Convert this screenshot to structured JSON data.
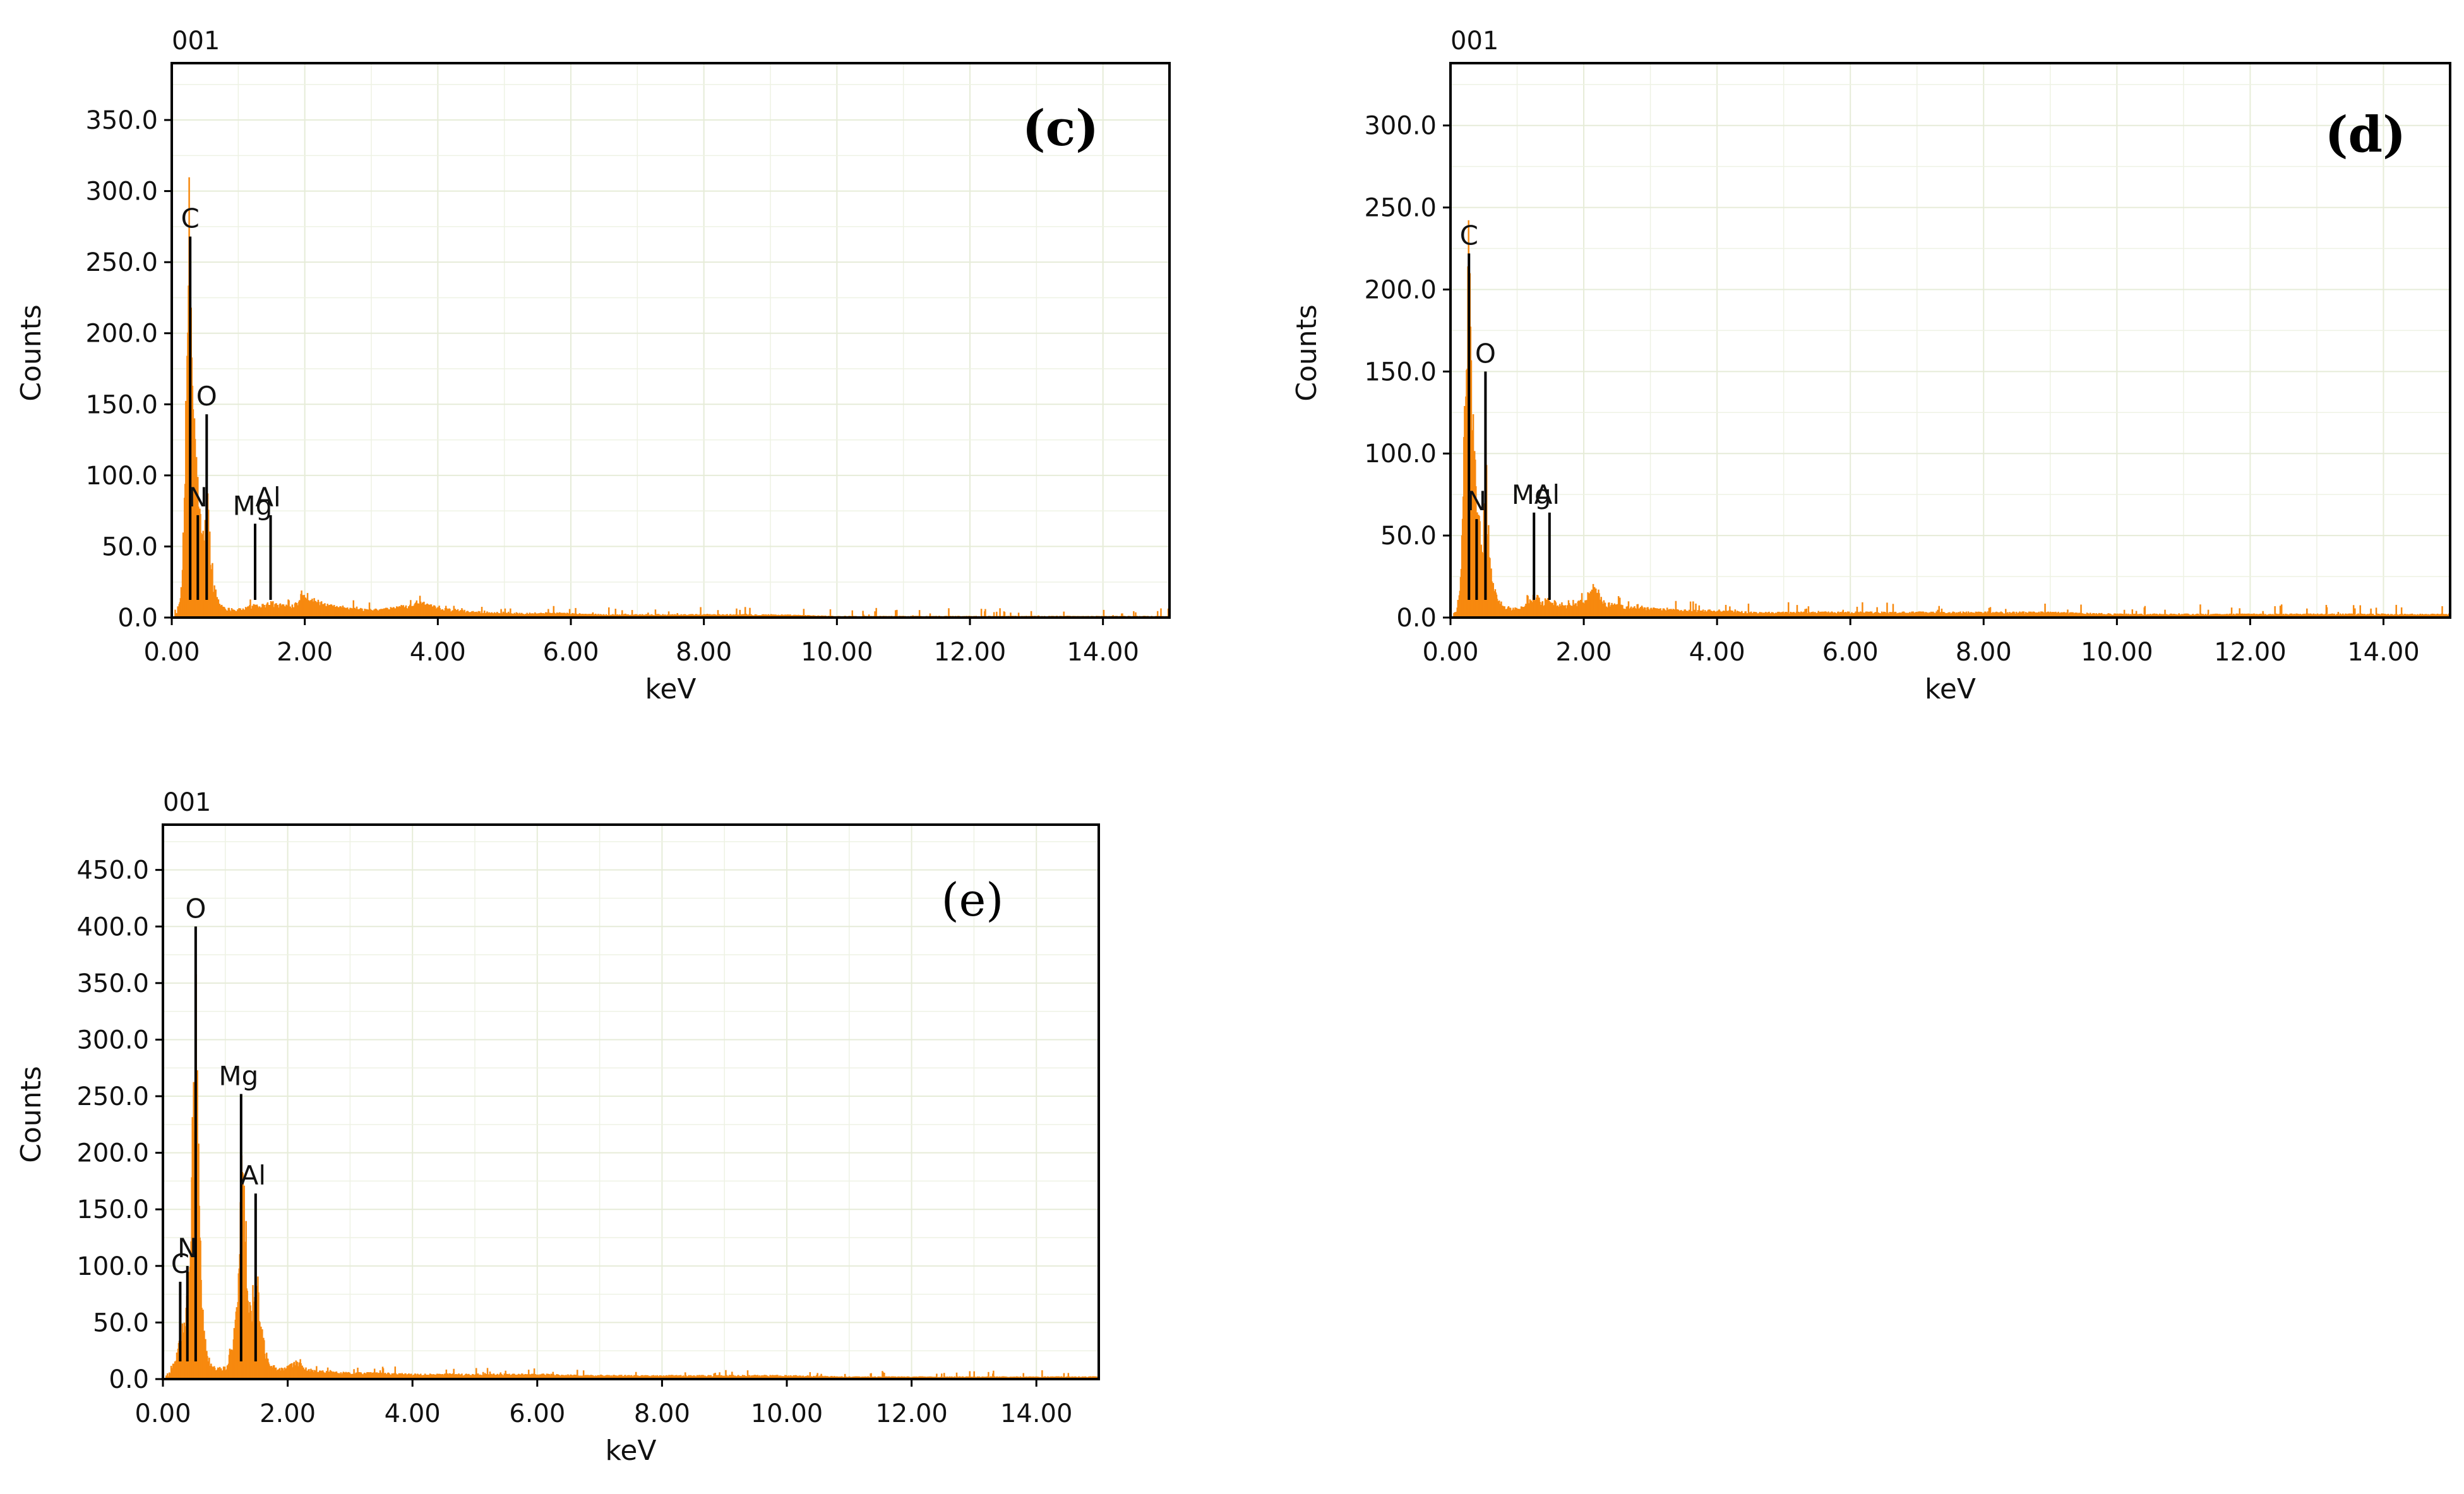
{
  "chart_data": [
    {
      "id": "c",
      "type": "bar",
      "spectrum_id": "001",
      "panel_label": "(c)",
      "panel_label_style": "bold",
      "xlabel": "keV",
      "ylabel": "Counts",
      "xlim": [
        0,
        15
      ],
      "ylim": [
        0,
        390
      ],
      "xticks": [
        "0.00",
        "2.00",
        "4.00",
        "6.00",
        "8.00",
        "10.00",
        "12.00",
        "14.00"
      ],
      "yticks": [
        "0.0",
        "50.0",
        "100.0",
        "150.0",
        "200.0",
        "250.0",
        "300.0",
        "350.0"
      ],
      "grid": true,
      "color": "#F7890F",
      "spectrum": {
        "x": [
          0.08,
          0.14,
          0.18,
          0.22,
          0.25,
          0.28,
          0.31,
          0.34,
          0.37,
          0.4,
          0.44,
          0.48,
          0.52,
          0.55,
          0.58,
          0.62,
          0.7,
          0.8,
          0.95,
          1.1,
          1.25,
          1.35,
          1.49,
          1.6,
          1.8,
          2.0,
          2.1,
          2.3,
          2.6,
          3.0,
          3.3,
          3.7,
          4.0,
          4.5,
          5.0,
          5.8,
          6.5,
          7.0,
          8.0,
          9.0,
          10.0,
          11.0,
          12.0,
          13.0,
          14.0,
          15.0
        ],
        "y": [
          3,
          20,
          90,
          150,
          255,
          210,
          145,
          115,
          90,
          70,
          55,
          50,
          80,
          60,
          35,
          20,
          10,
          6,
          5,
          6,
          9,
          8,
          10,
          8,
          8,
          15,
          12,
          8,
          6,
          5,
          6,
          10,
          6,
          4,
          3,
          3,
          2,
          2,
          2,
          2,
          1,
          1,
          1,
          1,
          1,
          1
        ]
      },
      "peaks": [
        {
          "label": "C",
          "x": 0.277,
          "y": 268
        },
        {
          "label": "O",
          "x": 0.525,
          "y": 143
        },
        {
          "label": "N",
          "x": 0.392,
          "y": 72
        },
        {
          "label": "Mg",
          "x": 1.253,
          "y": 66
        },
        {
          "label": "Al",
          "x": 1.486,
          "y": 72
        }
      ]
    },
    {
      "id": "d",
      "type": "bar",
      "spectrum_id": "001",
      "panel_label": "(d)",
      "panel_label_style": "bold",
      "xlabel": "keV",
      "ylabel": "Counts",
      "xlim": [
        0,
        15
      ],
      "ylim": [
        0,
        338
      ],
      "xticks": [
        "0.00",
        "2.00",
        "4.00",
        "6.00",
        "8.00",
        "10.00",
        "12.00",
        "14.00"
      ],
      "yticks": [
        "0.0",
        "50.0",
        "100.0",
        "150.0",
        "200.0",
        "250.0",
        "300.0"
      ],
      "grid": true,
      "color": "#F7890F",
      "spectrum": {
        "x": [
          0.08,
          0.14,
          0.18,
          0.22,
          0.25,
          0.28,
          0.31,
          0.34,
          0.37,
          0.4,
          0.44,
          0.48,
          0.52,
          0.55,
          0.58,
          0.62,
          0.7,
          0.8,
          0.95,
          1.1,
          1.25,
          1.35,
          1.49,
          1.6,
          1.8,
          2.0,
          2.12,
          2.3,
          2.6,
          3.0,
          3.5,
          4.0,
          4.5,
          5.0,
          6.0,
          7.0,
          8.0,
          9.0,
          10.0,
          11.0,
          12.0,
          13.0,
          14.0,
          15.0
        ],
        "y": [
          3,
          20,
          80,
          130,
          218,
          175,
          120,
          95,
          70,
          55,
          45,
          45,
          92,
          55,
          30,
          18,
          10,
          6,
          5,
          6,
          13,
          9,
          10,
          8,
          7,
          10,
          17,
          8,
          6,
          5,
          4,
          4,
          3,
          3,
          3,
          3,
          3,
          3,
          2,
          2,
          2,
          2,
          2,
          2
        ]
      },
      "peaks": [
        {
          "label": "C",
          "x": 0.277,
          "y": 222
        },
        {
          "label": "O",
          "x": 0.525,
          "y": 150
        },
        {
          "label": "N",
          "x": 0.392,
          "y": 60
        },
        {
          "label": "Mg",
          "x": 1.253,
          "y": 64
        },
        {
          "label": "Al",
          "x": 1.486,
          "y": 64
        }
      ]
    },
    {
      "id": "e",
      "type": "bar",
      "spectrum_id": "001",
      "panel_label": "(e)",
      "panel_label_style": "plain",
      "xlabel": "keV",
      "ylabel": "Counts",
      "xlim": [
        0,
        15
      ],
      "ylim": [
        0,
        490
      ],
      "xticks": [
        "0.00",
        "2.00",
        "4.00",
        "6.00",
        "8.00",
        "10.00",
        "12.00",
        "14.00"
      ],
      "yticks": [
        "0.0",
        "50.0",
        "100.0",
        "150.0",
        "200.0",
        "250.0",
        "300.0",
        "350.0",
        "400.0",
        "450.0"
      ],
      "grid": true,
      "color": "#F7890F",
      "spectrum": {
        "x": [
          0.08,
          0.14,
          0.2,
          0.25,
          0.28,
          0.32,
          0.36,
          0.39,
          0.42,
          0.46,
          0.5,
          0.525,
          0.55,
          0.58,
          0.62,
          0.68,
          0.75,
          0.85,
          1.0,
          1.1,
          1.2,
          1.25,
          1.3,
          1.35,
          1.4,
          1.45,
          1.49,
          1.55,
          1.62,
          1.7,
          1.85,
          2.0,
          2.15,
          2.3,
          2.6,
          3.0,
          3.5,
          4.0,
          5.0,
          6.0,
          7.0,
          8.0,
          9.0,
          10.0,
          11.0,
          12.0,
          13.0,
          14.0,
          15.0
        ],
        "y": [
          3,
          8,
          20,
          30,
          35,
          45,
          60,
          70,
          100,
          190,
          250,
          320,
          215,
          150,
          60,
          25,
          12,
          8,
          10,
          25,
          80,
          165,
          150,
          60,
          55,
          75,
          85,
          50,
          25,
          12,
          8,
          10,
          14,
          8,
          6,
          5,
          5,
          4,
          4,
          4,
          3,
          3,
          3,
          3,
          2,
          2,
          2,
          2,
          2
        ]
      },
      "peaks": [
        {
          "label": "O",
          "x": 0.525,
          "y": 400
        },
        {
          "label": "Mg",
          "x": 1.253,
          "y": 252
        },
        {
          "label": "Al",
          "x": 1.486,
          "y": 164
        },
        {
          "label": "N",
          "x": 0.392,
          "y": 100
        },
        {
          "label": "C",
          "x": 0.277,
          "y": 86
        }
      ]
    }
  ]
}
